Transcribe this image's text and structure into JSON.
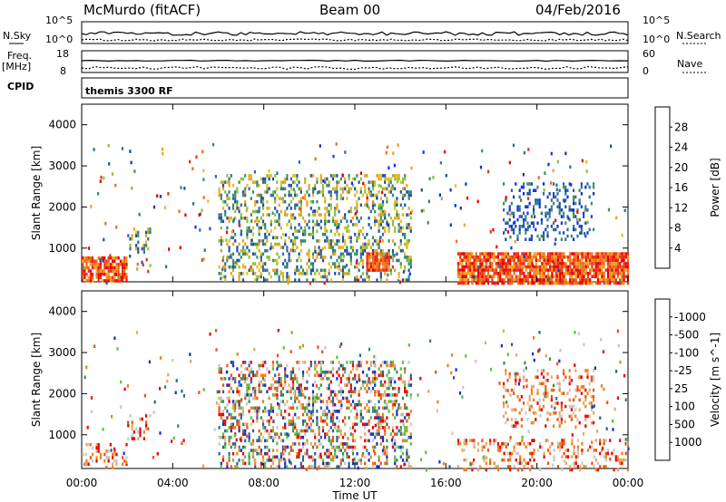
{
  "header": {
    "station": "McMurdo (fitACF)",
    "beam": "Beam 00",
    "date": "04/Feb/2016"
  },
  "status_panel": {
    "nsky_label": "N.Sky",
    "nsearch_label": "N.Search",
    "freq_label": "Freq.",
    "freq_unit": "[MHz]",
    "nave_label": "Nave",
    "cpid_label": "CPID",
    "cpid_value": "themis 3300 RF",
    "noise_ticks": [
      "10^5",
      "10^0"
    ],
    "freq_ticks": [
      "18",
      "8"
    ],
    "nave_ticks": [
      "60",
      "0"
    ]
  },
  "chart_data": [
    {
      "type": "heatmap",
      "title": "",
      "xlabel": "Time UT",
      "ylabel": "Slant Range [km]",
      "x_ticks": [
        "00:00",
        "04:00",
        "08:00",
        "12:00",
        "16:00",
        "20:00",
        "00:00"
      ],
      "y_ticks": [
        "1000",
        "2000",
        "3000",
        "4000"
      ],
      "xlim": [
        0,
        24
      ],
      "ylim": [
        180,
        4500
      ],
      "colorbar_label": "Power [dB]",
      "colorbar_ticks": [
        "4",
        "8",
        "12",
        "16",
        "20",
        "24",
        "28"
      ],
      "colorbar_colors": [
        "#1030e0",
        "#1b4fa8",
        "#2f6f9a",
        "#3a8f60",
        "#8fbf3a",
        "#e0c020",
        "#f0a020",
        "#f06c18",
        "#e83018",
        "#e80000"
      ],
      "scatter_regions": [
        {
          "t": [
            0.0,
            2.0
          ],
          "r": [
            180,
            800
          ],
          "level": "high"
        },
        {
          "t": [
            2.0,
            3.0
          ],
          "r": [
            900,
            1500
          ],
          "level": "mid"
        },
        {
          "t": [
            6.0,
            14.5
          ],
          "r": [
            200,
            2800
          ],
          "level": "mid"
        },
        {
          "t": [
            12.5,
            13.5
          ],
          "r": [
            500,
            900
          ],
          "level": "high"
        },
        {
          "t": [
            16.5,
            24.0
          ],
          "r": [
            180,
            900
          ],
          "level": "high"
        },
        {
          "t": [
            18.5,
            22.5
          ],
          "r": [
            1200,
            2600
          ],
          "level": "low"
        }
      ]
    },
    {
      "type": "heatmap",
      "title": "",
      "xlabel": "Time UT",
      "ylabel": "Slant Range [km]",
      "x_ticks": [
        "00:00",
        "04:00",
        "08:00",
        "12:00",
        "16:00",
        "20:00",
        "00:00"
      ],
      "y_ticks": [
        "1000",
        "2000",
        "3000",
        "4000"
      ],
      "xlim": [
        0,
        24
      ],
      "ylim": [
        180,
        4500
      ],
      "colorbar_label": "Velocity [m s^-1]",
      "colorbar_ticks": [
        "1000",
        "500",
        "100",
        "25",
        "-25",
        "-100",
        "-500",
        "-1000"
      ],
      "colorbar_colors": [
        "#1030d0",
        "#2d60a0",
        "#3c8c50",
        "#5cc040",
        "#c8c8c8",
        "#e8a860",
        "#f08018",
        "#f05010",
        "#e80000"
      ],
      "scatter_regions": [
        {
          "t": [
            0.0,
            2.0
          ],
          "r": [
            180,
            800
          ],
          "level": "low"
        },
        {
          "t": [
            2.0,
            3.0
          ],
          "r": [
            900,
            1500
          ],
          "level": "low"
        },
        {
          "t": [
            6.0,
            14.5
          ],
          "r": [
            200,
            2800
          ],
          "level": "mixed"
        },
        {
          "t": [
            16.5,
            24.0
          ],
          "r": [
            180,
            900
          ],
          "level": "low"
        },
        {
          "t": [
            18.5,
            22.5
          ],
          "r": [
            1200,
            2600
          ],
          "level": "low"
        }
      ]
    }
  ]
}
